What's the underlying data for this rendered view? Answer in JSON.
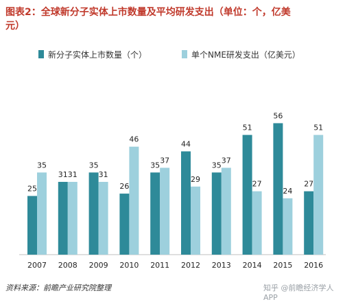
{
  "title": {
    "line1": "图表2：全球新分子实体上市数量及平均研发支出（单位：个，亿美",
    "line2": "元）"
  },
  "source": "资料来源：前瞻产业研究院整理",
  "credit": "知乎 @前瞻经济学人APP",
  "colors": {
    "title": "#c0392b",
    "series1": "#2e8a99",
    "series2": "#9dd0dd"
  },
  "chart_data": {
    "type": "bar",
    "categories": [
      "2007",
      "2008",
      "2009",
      "2010",
      "2011",
      "2012",
      "2013",
      "2014",
      "2015",
      "2016"
    ],
    "series": [
      {
        "name": "新分子实体上市数量（个）",
        "values": [
          25,
          31,
          35,
          26,
          35,
          44,
          35,
          51,
          56,
          27
        ]
      },
      {
        "name": "单个NME研发支出（亿美元）",
        "values": [
          35,
          31,
          31,
          46,
          37,
          29,
          37,
          27,
          24,
          51
        ]
      }
    ],
    "ylim": [
      0,
      60
    ],
    "grid": false,
    "legend": "top-center"
  }
}
